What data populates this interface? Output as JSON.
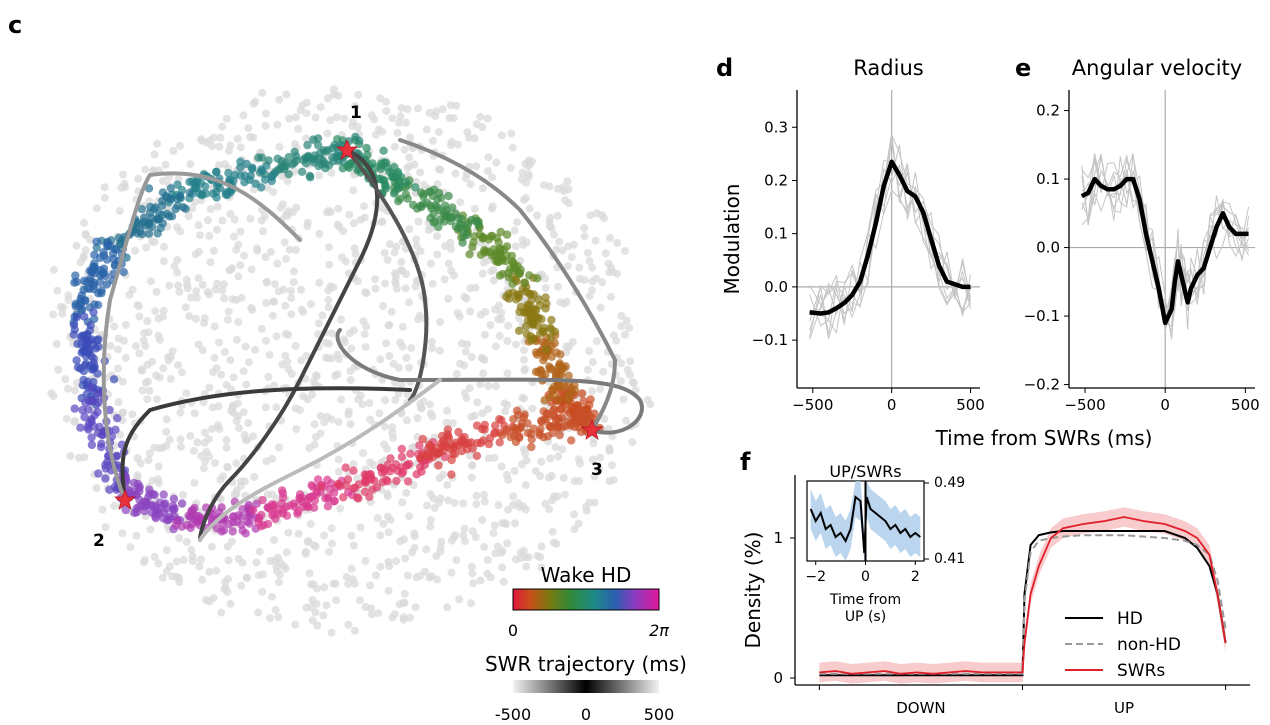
{
  "panel_c": {
    "letter": "c",
    "start_labels": [
      "1",
      "2",
      "3"
    ],
    "colorbar_hd": {
      "title": "Wake HD",
      "min_label": "0",
      "max_label": "2π"
    },
    "colorbar_swr": {
      "title": "SWR trajectory (ms)",
      "ticks": [
        "-500",
        "0",
        "500"
      ]
    }
  },
  "panel_d": {
    "letter": "d"
  },
  "panel_e": {
    "letter": "e"
  },
  "panel_f": {
    "letter": "f"
  },
  "shared_xlabel": "Time from SWRs (ms)",
  "chart_data": [
    {
      "type": "line",
      "title": "Radius",
      "xlabel": "",
      "ylabel": "Modulation",
      "xlim": [
        -600,
        560
      ],
      "ylim": [
        -0.19,
        0.37
      ],
      "xticks": [
        -500,
        0,
        500
      ],
      "xtick_labels": [
        "−500",
        "0",
        "500"
      ],
      "yticks": [
        -0.1,
        0.0,
        0.1,
        0.2,
        0.3
      ],
      "ytick_labels": [
        "−0.1",
        "0.0",
        "0.1",
        "0.2",
        "0.3"
      ],
      "x": [
        -520,
        -450,
        -400,
        -350,
        -300,
        -250,
        -200,
        -150,
        -100,
        -50,
        0,
        50,
        100,
        150,
        200,
        250,
        300,
        350,
        400,
        450,
        500
      ],
      "series": [
        {
          "values": [
            -0.048,
            -0.05,
            -0.048,
            -0.04,
            -0.03,
            -0.015,
            0.01,
            0.06,
            0.12,
            0.19,
            0.235,
            0.21,
            0.18,
            0.17,
            0.14,
            0.09,
            0.04,
            0.01,
            0.005,
            0.0,
            0.0
          ]
        }
      ],
      "individual_traces_shown": true
    },
    {
      "type": "line",
      "title": "Angular velocity",
      "xlabel": "",
      "ylabel": "",
      "xlim": [
        -600,
        560
      ],
      "ylim": [
        -0.205,
        0.23
      ],
      "xticks": [
        -500,
        0,
        500
      ],
      "xtick_labels": [
        "−500",
        "0",
        "500"
      ],
      "yticks": [
        -0.2,
        -0.1,
        0.0,
        0.1,
        0.2
      ],
      "ytick_labels": [
        "−0.2",
        "−0.1",
        "0.0",
        "0.1",
        "0.2"
      ],
      "x": [
        -520,
        -480,
        -440,
        -400,
        -360,
        -320,
        -280,
        -240,
        -200,
        -160,
        -120,
        -80,
        -40,
        0,
        40,
        60,
        80,
        100,
        120,
        140,
        160,
        200,
        240,
        280,
        320,
        360,
        400,
        440,
        480,
        520
      ],
      "series": [
        {
          "values": [
            0.075,
            0.08,
            0.1,
            0.09,
            0.085,
            0.085,
            0.09,
            0.1,
            0.1,
            0.07,
            0.02,
            -0.02,
            -0.06,
            -0.11,
            -0.09,
            -0.05,
            -0.02,
            -0.04,
            -0.06,
            -0.08,
            -0.06,
            -0.04,
            -0.03,
            0.0,
            0.03,
            0.05,
            0.03,
            0.02,
            0.02,
            0.02
          ]
        }
      ],
      "individual_traces_shown": true
    },
    {
      "type": "line",
      "title": "",
      "xlabel": "",
      "ylabel": "Density (%)",
      "xtick_labels": [
        "DOWN",
        "UP"
      ],
      "yticks": [
        0,
        1
      ],
      "ytick_labels": [
        "0",
        "1"
      ],
      "ylim": [
        -0.05,
        1.45
      ],
      "x": [
        0,
        0.04,
        0.08,
        0.12,
        0.16,
        0.2,
        0.24,
        0.28,
        0.32,
        0.36,
        0.4,
        0.44,
        0.48,
        0.5,
        0.505,
        0.52,
        0.54,
        0.57,
        0.6,
        0.65,
        0.7,
        0.75,
        0.8,
        0.85,
        0.9,
        0.93,
        0.96,
        0.98,
        1.0
      ],
      "series": [
        {
          "name": "HD",
          "values": [
            0.02,
            0.02,
            0.02,
            0.02,
            0.02,
            0.02,
            0.02,
            0.02,
            0.02,
            0.02,
            0.02,
            0.02,
            0.02,
            0.02,
            0.6,
            0.95,
            1.02,
            1.04,
            1.05,
            1.05,
            1.05,
            1.05,
            1.05,
            1.05,
            1.0,
            0.93,
            0.8,
            0.6,
            0.25
          ]
        },
        {
          "name": "non-HD",
          "values": [
            0.03,
            0.03,
            0.03,
            0.03,
            0.03,
            0.03,
            0.03,
            0.03,
            0.03,
            0.03,
            0.03,
            0.03,
            0.03,
            0.03,
            0.55,
            0.9,
            0.98,
            1.0,
            1.01,
            1.02,
            1.02,
            1.02,
            1.01,
            1.0,
            0.98,
            0.95,
            0.88,
            0.7,
            0.35
          ]
        },
        {
          "name": "SWRs",
          "values": [
            0.04,
            0.05,
            0.03,
            0.04,
            0.05,
            0.03,
            0.04,
            0.03,
            0.04,
            0.05,
            0.04,
            0.04,
            0.04,
            0.04,
            0.25,
            0.6,
            0.8,
            1.0,
            1.07,
            1.1,
            1.12,
            1.15,
            1.12,
            1.1,
            1.05,
            1.0,
            0.88,
            0.6,
            0.25
          ]
        }
      ],
      "legend": "center-right",
      "inset": {
        "type": "line",
        "title": "UP/SWRs",
        "xlabel": "Time from UP (s)",
        "xticks": [
          -2,
          0,
          2
        ],
        "xtick_labels": [
          "−2",
          "0",
          "2"
        ],
        "ytick_labels": [
          "0.41",
          "0.49"
        ],
        "ylim": [
          0.41,
          0.49
        ],
        "x": [
          -2.2,
          -2.0,
          -1.8,
          -1.6,
          -1.4,
          -1.2,
          -1.0,
          -0.8,
          -0.6,
          -0.4,
          -0.2,
          -0.05,
          0.05,
          0.2,
          0.4,
          0.6,
          0.8,
          1.0,
          1.2,
          1.4,
          1.6,
          1.8,
          2.0,
          2.2
        ],
        "values": [
          0.465,
          0.45,
          0.46,
          0.44,
          0.445,
          0.43,
          0.435,
          0.425,
          0.44,
          0.48,
          0.475,
          0.41,
          0.48,
          0.465,
          0.46,
          0.455,
          0.45,
          0.44,
          0.445,
          0.435,
          0.44,
          0.43,
          0.435,
          0.43
        ]
      }
    }
  ]
}
